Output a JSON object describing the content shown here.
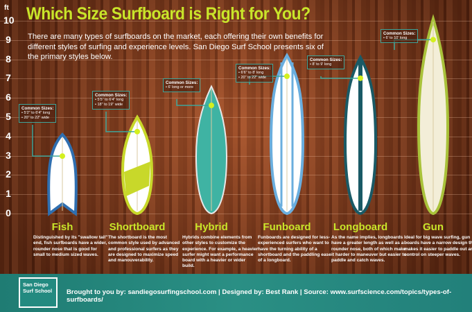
{
  "title": "Which Size Surfboard is Right for You?",
  "intro": "There are many types of surfboards on the market, each offering their own benefits for different styles of surfing and experience levels.  San Diego Surf School presents six of the primary styles below.",
  "axis": {
    "unit": "ft",
    "ticks": [
      "10",
      "9",
      "8",
      "7",
      "6",
      "5",
      "4",
      "3",
      "2",
      "1",
      "0"
    ]
  },
  "callout_heading": "Common Sizes:",
  "boards": [
    {
      "name": "Fish",
      "sizes": [
        "5'2\" to 6'4\" long",
        "20\" to 22\" wide"
      ],
      "description": "Distinguished by its \"swallow tail\" end, fish surfboards have a wider, rounder nose that is good for small to medium sized waves.",
      "colors": [
        "#ffffff",
        "#2f6fb0"
      ]
    },
    {
      "name": "Shortboard",
      "sizes": [
        "5'5\" to 6'4\" long",
        "18\" to 19\" wide"
      ],
      "description": "The shortboard is the most common style used by advanced and professional surfers as they are designed to maximize speed and manouverability.",
      "colors": [
        "#ffffff",
        "#c8d82a"
      ]
    },
    {
      "name": "Hybrid",
      "sizes": [
        "6' long or more"
      ],
      "description": "Hybrids combine elements from other styles to customize the experience. For example, a heavier surfer might want a performance board with a heavier or wider build.",
      "colors": [
        "#3fb3a3",
        "#e8e8e8"
      ]
    },
    {
      "name": "Funboard",
      "sizes": [
        "6'6\" to 8' long",
        "20\" to 22\" wide"
      ],
      "description": "Funboards are designed for less-experienced surfers who want to have the turning ability of a shortboard and the paddling ease of a longboard.",
      "colors": [
        "#ffffff",
        "#6aaede"
      ]
    },
    {
      "name": "Longboard",
      "sizes": [
        "8' to 9' long"
      ],
      "description": "As the name implies, longboards have a greater length as well as a rounder nose, both of which make it harder to maneuver but easier to paddle and catch waves.",
      "colors": [
        "#ffffff",
        "#1a5a66"
      ]
    },
    {
      "name": "Gun",
      "sizes": [
        "6' to 10' long"
      ],
      "description": "Ideal for big wave surfing, gun boards have a narrow design that makes it easier to paddle out and control on steeper waves.",
      "colors": [
        "#f3eed8",
        "#a9c23a"
      ]
    }
  ],
  "footer": {
    "logo_text": "San Diego Surf School",
    "credits": "Brought to you by: sandiegosurfingschool.com | Designed by: Best Rank | Source: www.surfscience.com/topics/types-of-surfboards/"
  },
  "colors": {
    "accent": "#c9e52a",
    "teal": "#2a8f84",
    "callout_border": "#3fa59a",
    "marker": "#d4f01e"
  }
}
